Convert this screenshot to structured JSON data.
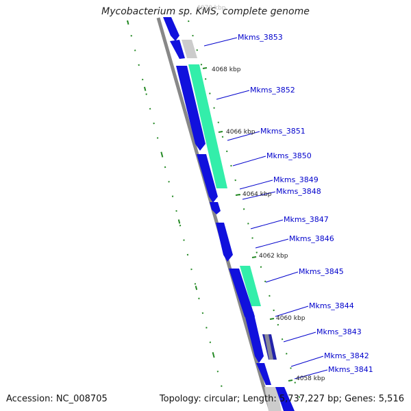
{
  "title": "Mycobacterium sp. KMS, complete genome",
  "accession": "Accession: NC_008705",
  "summary": "Topology: circular; Length: 5,737,227 bp; Genes: 5,516",
  "colors": {
    "cds": "#1111dd",
    "rna_highlight": "#33eeaa",
    "backbone": "#888888",
    "label": "#0000cc",
    "tick": "#228822",
    "pseudo": "#cccccc"
  },
  "gene_labels": [
    "Mkms_3853",
    "Mkms_3852",
    "Mkms_3851",
    "Mkms_3850",
    "Mkms_3849",
    "Mkms_3848",
    "Mkms_3847",
    "Mkms_3846",
    "Mkms_3845",
    "Mkms_3844",
    "Mkms_3843",
    "Mkms_3842",
    "Mkms_3841"
  ],
  "kbp_markers": [
    "4070 kbp",
    "4068 kbp",
    "4066 kbp",
    "4064 kbp",
    "4062 kbp",
    "4060 kbp",
    "4058 kbp"
  ]
}
